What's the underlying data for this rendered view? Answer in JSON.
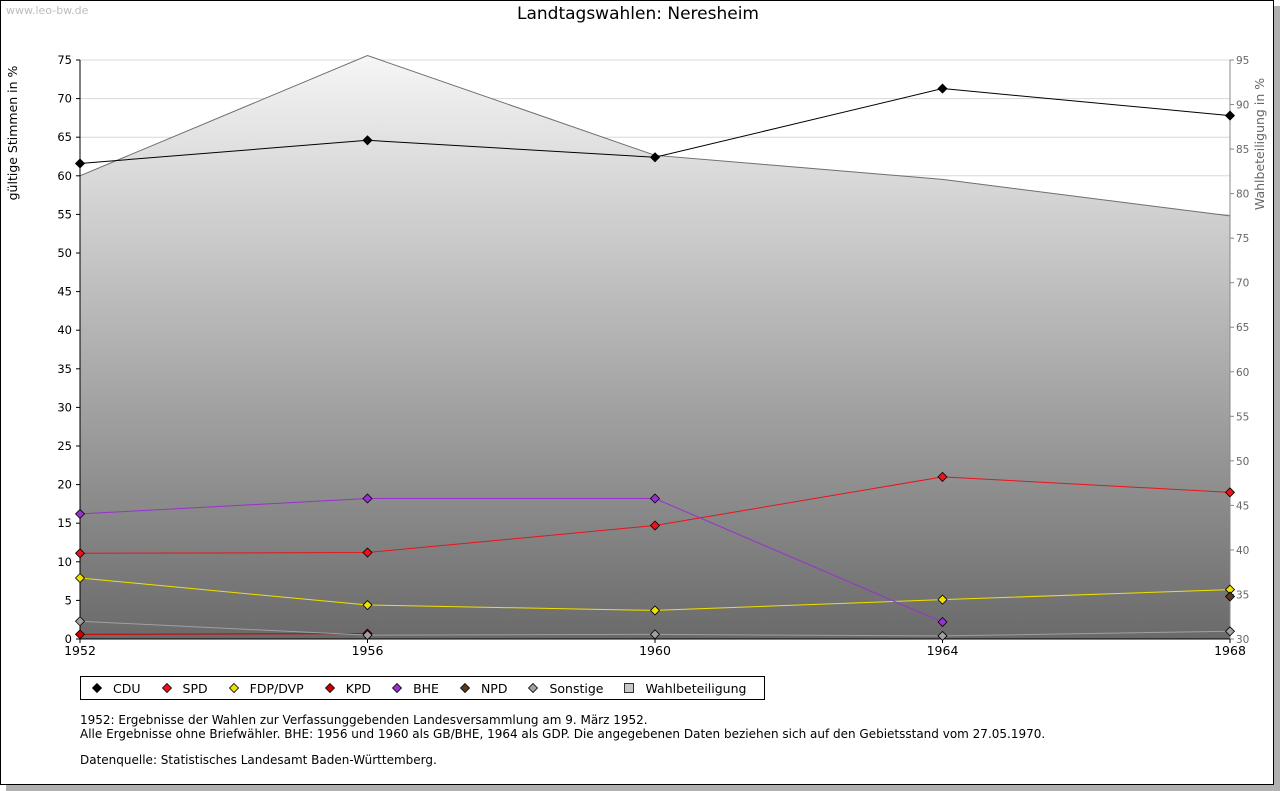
{
  "watermark": "www.leo-bw.de",
  "title": "Landtagswahlen: Neresheim",
  "legend_title": "",
  "notes": {
    "line1": "1952: Ergebnisse der Wahlen zur Verfassunggebenden Landesversammlung am 9. März 1952.",
    "line2": "Alle Ergebnisse ohne Briefwähler. BHE: 1956 und 1960 als GB/BHE, 1964 als GDP. Die angegebenen Daten beziehen sich auf den Gebietsstand vom 27.05.1970.",
    "line3": "Datenquelle: Statistisches Landesamt Baden-Württemberg."
  },
  "chart_data": {
    "type": "line",
    "title": "Landtagswahlen: Neresheim",
    "xlabel": "",
    "ylabel": "gültige Stimmen in %",
    "y2label": "Wahlbeteiligung in %",
    "categories": [
      "1952",
      "1956",
      "1960",
      "1964",
      "1968"
    ],
    "ylim": [
      0,
      75
    ],
    "yticks": [
      0,
      5,
      10,
      15,
      20,
      25,
      30,
      35,
      40,
      45,
      50,
      55,
      60,
      65,
      70,
      75
    ],
    "y2lim": [
      30,
      95
    ],
    "y2ticks": [
      30,
      35,
      40,
      45,
      50,
      55,
      60,
      65,
      70,
      75,
      80,
      85,
      90,
      95
    ],
    "grid": true,
    "legend_position": "bottom",
    "area_series": {
      "name": "Wahlbeteiligung",
      "axis": "right",
      "values": [
        82.0,
        95.5,
        84.3,
        81.6,
        77.5
      ],
      "color": "#c8c8c8",
      "stroke": "#6e6e6e"
    },
    "series": [
      {
        "name": "CDU",
        "color": "#000000",
        "values": [
          61.6,
          64.6,
          62.4,
          71.3,
          67.8
        ]
      },
      {
        "name": "SPD",
        "color": "#e8141c",
        "values": [
          11.1,
          11.2,
          14.7,
          21.0,
          19.0
        ]
      },
      {
        "name": "FDP/DVP",
        "color": "#f0e000",
        "values": [
          7.9,
          4.4,
          3.7,
          5.1,
          6.4
        ]
      },
      {
        "name": "KPD",
        "color": "#cc0000",
        "values": [
          0.6,
          0.7,
          null,
          null,
          null
        ]
      },
      {
        "name": "BHE",
        "color": "#9932cc",
        "values": [
          16.2,
          18.2,
          18.2,
          2.2,
          null
        ]
      },
      {
        "name": "NPD",
        "color": "#5a3a1a",
        "values": [
          null,
          null,
          null,
          null,
          5.5
        ]
      },
      {
        "name": "Sonstige",
        "color": "#a0a0a0",
        "values": [
          2.3,
          0.5,
          0.6,
          0.4,
          1.0
        ]
      }
    ]
  }
}
